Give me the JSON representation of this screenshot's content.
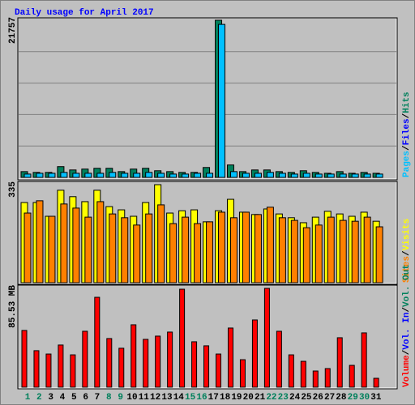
{
  "chart_data": [
    {
      "type": "bar",
      "title": "Daily usage for April 2017",
      "title_color": "#0000ff",
      "ylim": [
        0,
        21757
      ],
      "yticks": [
        21757
      ],
      "grid_lines": 4,
      "legend_separator": "/",
      "legend": [
        {
          "label": "Pages",
          "color": "#00c0ff"
        },
        {
          "label": "Files",
          "color": "#0000ff"
        },
        {
          "label": "Hits",
          "color": "#00805c"
        }
      ],
      "series": [
        {
          "color": "#00805c",
          "values": [
            800,
            690,
            690,
            1490,
            1030,
            1150,
            1260,
            1260,
            800,
            1150,
            1260,
            920,
            800,
            690,
            690,
            1370,
            21757,
            1720,
            800,
            1030,
            1030,
            800,
            690,
            920,
            690,
            570,
            800,
            570,
            690,
            570,
            null
          ]
        },
        {
          "color": "#00c0ff",
          "values": [
            460,
            570,
            570,
            690,
            570,
            570,
            570,
            690,
            570,
            570,
            690,
            570,
            460,
            460,
            570,
            570,
            21184,
            800,
            570,
            570,
            690,
            570,
            460,
            570,
            460,
            460,
            460,
            460,
            460,
            460,
            null
          ]
        }
      ]
    },
    {
      "type": "bar",
      "ylim": [
        0,
        335
      ],
      "yticks": [
        335
      ],
      "legend_separator": "/",
      "legend": [
        {
          "label": "Sites",
          "color": "#ff8000"
        },
        {
          "label": "Visits",
          "color": "#ffff00"
        }
      ],
      "series": [
        {
          "color": "#ffff00",
          "values": [
            274,
            274,
            227,
            316,
            294,
            277,
            316,
            260,
            249,
            227,
            274,
            335,
            238,
            246,
            249,
            208,
            246,
            285,
            241,
            233,
            252,
            235,
            222,
            205,
            224,
            244,
            235,
            227,
            241,
            210,
            null
          ]
        },
        {
          "color": "#ff8000",
          "values": [
            238,
            280,
            227,
            269,
            255,
            224,
            277,
            235,
            222,
            197,
            235,
            266,
            202,
            224,
            202,
            208,
            241,
            222,
            241,
            233,
            258,
            222,
            213,
            188,
            197,
            224,
            213,
            210,
            224,
            191,
            null
          ]
        }
      ]
    },
    {
      "type": "bar",
      "ylim": [
        0,
        85.53
      ],
      "yticks": [
        {
          "value": 85.53,
          "label": "85.53 MB"
        }
      ],
      "legend_separator": "/",
      "legend": [
        {
          "label": "Volume",
          "color": "#ff0000"
        },
        {
          "label": "Vol. In",
          "color": "#0000ff"
        },
        {
          "label": "Vol. Out",
          "color": "#00805c"
        }
      ],
      "series": [
        {
          "color": "#ff0000",
          "values": [
            49.1,
            31.6,
            28.7,
            36.5,
            28.0,
            48.4,
            77.8,
            42.1,
            33.7,
            54.0,
            41.4,
            44.2,
            47.7,
            84.8,
            39.3,
            35.8,
            28.7,
            51.2,
            23.8,
            58.2,
            85.53,
            48.4,
            28.0,
            22.4,
            14.0,
            16.1,
            42.8,
            18.9,
            47.0,
            7.7,
            null
          ]
        }
      ],
      "categories": [
        "1",
        "2",
        "3",
        "4",
        "5",
        "6",
        "7",
        "8",
        "9",
        "10",
        "11",
        "12",
        "13",
        "14",
        "15",
        "16",
        "17",
        "18",
        "19",
        "20",
        "21",
        "22",
        "23",
        "24",
        "25",
        "26",
        "27",
        "28",
        "29",
        "30",
        "31"
      ],
      "category_colors": [
        "#00805c",
        "#00805c",
        "#000000",
        "#000000",
        "#000000",
        "#000000",
        "#000000",
        "#00805c",
        "#00805c",
        "#000000",
        "#000000",
        "#000000",
        "#000000",
        "#000000",
        "#00805c",
        "#00805c",
        "#000000",
        "#000000",
        "#000000",
        "#000000",
        "#000000",
        "#00805c",
        "#00805c",
        "#000000",
        "#000000",
        "#000000",
        "#000000",
        "#000000",
        "#00805c",
        "#00805c",
        "#000000"
      ]
    }
  ]
}
